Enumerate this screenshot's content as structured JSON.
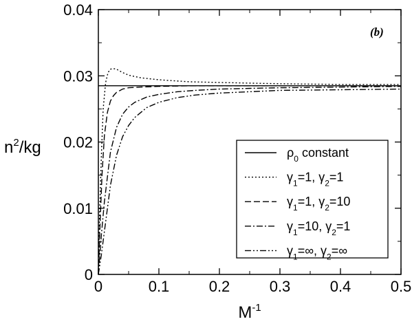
{
  "chart_data": {
    "type": "line",
    "panel_label": "(b)",
    "xlabel": {
      "base": "M",
      "sup": "-1"
    },
    "ylabel": {
      "base": "n",
      "sup": "2",
      "rest": "/kg"
    },
    "xlim": [
      0,
      0.5
    ],
    "ylim": [
      0,
      0.04
    ],
    "x_ticks": [
      0,
      0.1,
      0.2,
      0.3,
      0.4,
      0.5
    ],
    "x_tick_labels": [
      "0",
      "0.1",
      "0.2",
      "0.3",
      "0.4",
      "0.5"
    ],
    "y_ticks": [
      0,
      0.01,
      0.02,
      0.03,
      0.04
    ],
    "y_tick_labels": [
      "0",
      "0.01",
      "0.02",
      "0.03",
      "0.04"
    ],
    "grid": false,
    "legend_position": "lower-right",
    "series": [
      {
        "name": "ρ0 constant",
        "legend": [
          {
            "t": "ρ"
          },
          {
            "t": "0",
            "sub": true
          },
          {
            "t": " constant"
          }
        ],
        "dash": "",
        "x": [
          0,
          0.5
        ],
        "y": [
          0.0285,
          0.0285
        ]
      },
      {
        "name": "γ1=1, γ2=1",
        "legend": [
          {
            "t": "γ"
          },
          {
            "t": "1",
            "sub": true
          },
          {
            "t": "=1, γ"
          },
          {
            "t": "2",
            "sub": true
          },
          {
            "t": "=1"
          }
        ],
        "dash": "2,3",
        "x": [
          0,
          0.002,
          0.005,
          0.008,
          0.012,
          0.016,
          0.02,
          0.025,
          0.03,
          0.04,
          0.05,
          0.07,
          0.1,
          0.15,
          0.2,
          0.3,
          0.4,
          0.5
        ],
        "y": [
          0,
          0.009,
          0.018,
          0.025,
          0.029,
          0.0305,
          0.031,
          0.0311,
          0.031,
          0.0305,
          0.0301,
          0.0297,
          0.0294,
          0.0291,
          0.029,
          0.0288,
          0.0287,
          0.0287
        ]
      },
      {
        "name": "γ1=1, γ2=10",
        "legend": [
          {
            "t": "γ"
          },
          {
            "t": "1",
            "sub": true
          },
          {
            "t": "=1, γ"
          },
          {
            "t": "2",
            "sub": true
          },
          {
            "t": "=10"
          }
        ],
        "dash": "9,4",
        "x": [
          0,
          0.003,
          0.006,
          0.01,
          0.015,
          0.02,
          0.025,
          0.03,
          0.04,
          0.05,
          0.07,
          0.1,
          0.15,
          0.2,
          0.3,
          0.4,
          0.5
        ],
        "y": [
          0,
          0.008,
          0.015,
          0.021,
          0.0245,
          0.0262,
          0.027,
          0.0275,
          0.028,
          0.0282,
          0.0283,
          0.0284,
          0.0285,
          0.0285,
          0.0285,
          0.0285,
          0.0285
        ]
      },
      {
        "name": "γ1=10, γ2=1",
        "legend": [
          {
            "t": "γ"
          },
          {
            "t": "1",
            "sub": true
          },
          {
            "t": "=10, γ"
          },
          {
            "t": "2",
            "sub": true
          },
          {
            "t": "=1"
          }
        ],
        "dash": "9,3,2,3",
        "x": [
          0,
          0.005,
          0.01,
          0.02,
          0.03,
          0.04,
          0.05,
          0.06,
          0.08,
          0.1,
          0.13,
          0.16,
          0.2,
          0.25,
          0.3,
          0.4,
          0.5
        ],
        "y": [
          0,
          0.006,
          0.011,
          0.0185,
          0.0222,
          0.0242,
          0.0253,
          0.026,
          0.0268,
          0.0272,
          0.0276,
          0.0278,
          0.028,
          0.0281,
          0.0282,
          0.0283,
          0.0284
        ]
      },
      {
        "name": "γ1=∞, γ2=∞",
        "legend": [
          {
            "t": "γ"
          },
          {
            "t": "1",
            "sub": true
          },
          {
            "t": "=∞, γ"
          },
          {
            "t": "2",
            "sub": true
          },
          {
            "t": "=∞"
          }
        ],
        "dash": "9,3,2,3,2,3",
        "x": [
          0,
          0.005,
          0.01,
          0.02,
          0.03,
          0.04,
          0.05,
          0.06,
          0.08,
          0.1,
          0.13,
          0.16,
          0.2,
          0.25,
          0.3,
          0.4,
          0.5
        ],
        "y": [
          0,
          0.003,
          0.0065,
          0.0135,
          0.018,
          0.0208,
          0.0225,
          0.0237,
          0.0252,
          0.026,
          0.0267,
          0.0271,
          0.0274,
          0.0276,
          0.0278,
          0.0279,
          0.028
        ]
      }
    ]
  }
}
